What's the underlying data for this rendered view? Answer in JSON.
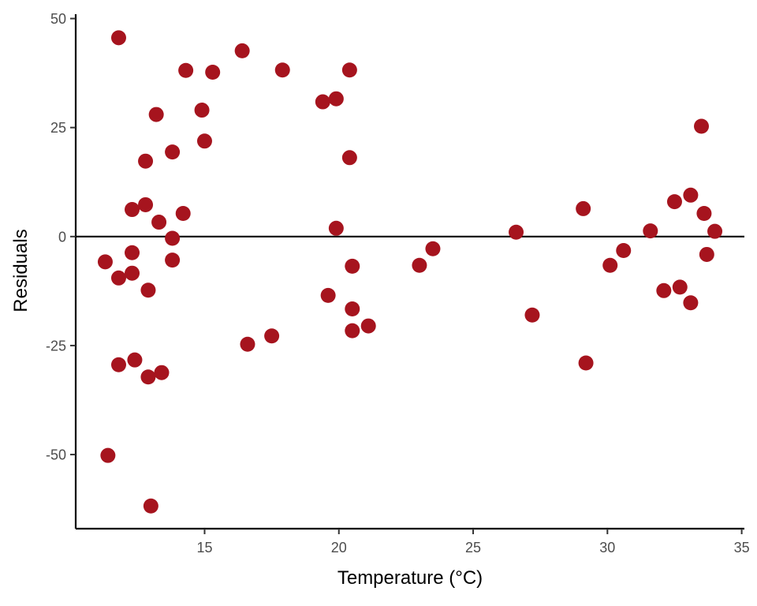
{
  "chart_data": {
    "type": "scatter",
    "title": "",
    "xlabel": "Temperature (°C)",
    "ylabel": "Residuals",
    "xlim": [
      10.2,
      35.1
    ],
    "ylim": [
      -67,
      51
    ],
    "x_ticks": [
      15,
      20,
      25,
      30,
      35
    ],
    "y_ticks": [
      50,
      25,
      0,
      -25,
      -50
    ],
    "x_tick_labels": [
      "15",
      "20",
      "25",
      "30",
      "35"
    ],
    "y_tick_labels": [
      "50",
      "25",
      "0",
      "-25",
      "-50"
    ],
    "reference_line": {
      "y": 0,
      "color": "#000000"
    },
    "grid": false,
    "legend": "none",
    "point_color": "#a6141e",
    "points": [
      {
        "x": 11.3,
        "y": -5.8
      },
      {
        "x": 11.4,
        "y": -50.2
      },
      {
        "x": 11.8,
        "y": 45.6
      },
      {
        "x": 11.8,
        "y": -9.5
      },
      {
        "x": 11.8,
        "y": -29.4
      },
      {
        "x": 12.3,
        "y": 6.2
      },
      {
        "x": 12.3,
        "y": -3.7
      },
      {
        "x": 12.3,
        "y": -8.4
      },
      {
        "x": 12.4,
        "y": -28.3
      },
      {
        "x": 12.8,
        "y": 17.3
      },
      {
        "x": 12.8,
        "y": 7.3
      },
      {
        "x": 12.9,
        "y": -12.3
      },
      {
        "x": 12.9,
        "y": -32.2
      },
      {
        "x": 13.0,
        "y": -61.8
      },
      {
        "x": 13.2,
        "y": 28.0
      },
      {
        "x": 13.3,
        "y": 3.3
      },
      {
        "x": 13.4,
        "y": -31.2
      },
      {
        "x": 13.8,
        "y": 19.4
      },
      {
        "x": 13.8,
        "y": -0.4
      },
      {
        "x": 13.8,
        "y": -5.4
      },
      {
        "x": 14.2,
        "y": 5.3
      },
      {
        "x": 14.3,
        "y": 38.1
      },
      {
        "x": 14.9,
        "y": 29.0
      },
      {
        "x": 15.0,
        "y": 21.9
      },
      {
        "x": 15.3,
        "y": 37.7
      },
      {
        "x": 16.4,
        "y": 42.6
      },
      {
        "x": 16.6,
        "y": -24.7
      },
      {
        "x": 17.5,
        "y": -22.8
      },
      {
        "x": 17.9,
        "y": 38.2
      },
      {
        "x": 19.4,
        "y": 30.9
      },
      {
        "x": 19.6,
        "y": -13.5
      },
      {
        "x": 19.9,
        "y": 31.6
      },
      {
        "x": 19.9,
        "y": 1.9
      },
      {
        "x": 20.4,
        "y": 38.2
      },
      {
        "x": 20.4,
        "y": 18.1
      },
      {
        "x": 20.5,
        "y": -6.8
      },
      {
        "x": 20.5,
        "y": -16.6
      },
      {
        "x": 20.5,
        "y": -21.6
      },
      {
        "x": 21.1,
        "y": -20.5
      },
      {
        "x": 23.0,
        "y": -6.6
      },
      {
        "x": 23.5,
        "y": -2.8
      },
      {
        "x": 26.6,
        "y": 1.0
      },
      {
        "x": 27.2,
        "y": -18.0
      },
      {
        "x": 29.1,
        "y": 6.4
      },
      {
        "x": 29.2,
        "y": -29.0
      },
      {
        "x": 30.1,
        "y": -6.6
      },
      {
        "x": 30.6,
        "y": -3.2
      },
      {
        "x": 31.6,
        "y": 1.3
      },
      {
        "x": 32.1,
        "y": -12.4
      },
      {
        "x": 32.5,
        "y": 8.0
      },
      {
        "x": 32.7,
        "y": -11.6
      },
      {
        "x": 33.1,
        "y": 9.5
      },
      {
        "x": 33.1,
        "y": -15.2
      },
      {
        "x": 33.5,
        "y": 25.3
      },
      {
        "x": 33.6,
        "y": 5.3
      },
      {
        "x": 33.7,
        "y": -4.1
      },
      {
        "x": 34.0,
        "y": 1.2
      }
    ]
  }
}
